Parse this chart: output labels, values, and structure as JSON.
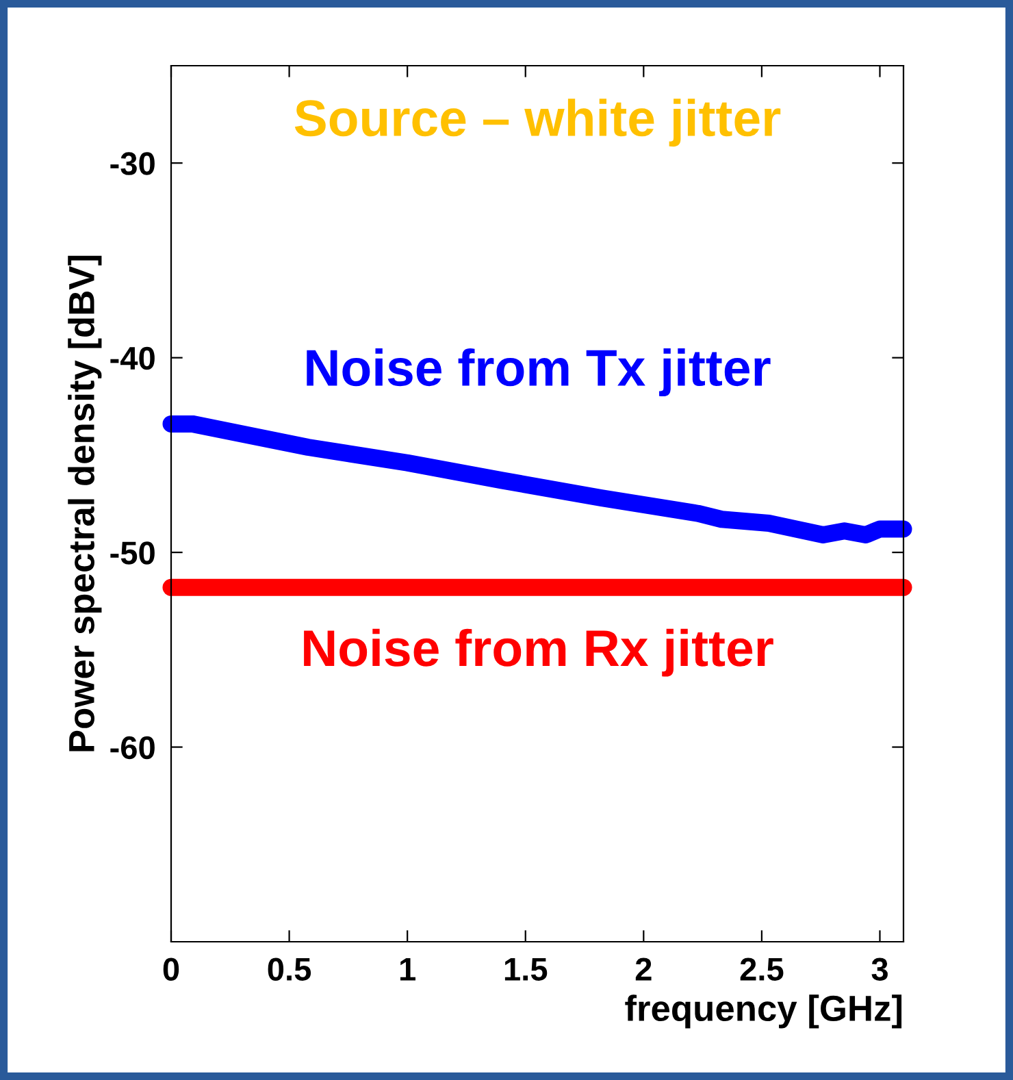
{
  "chart_data": {
    "type": "line",
    "xlabel": "frequency [GHz]",
    "ylabel": "Power spectral density [dBV]",
    "annotations": [
      "Source – white jitter"
    ],
    "series": [
      {
        "name": "Noise from Tx jitter",
        "color": "#0000ff",
        "x": [
          0,
          0.09,
          0.58,
          1.0,
          1.4,
          1.82,
          2.23,
          2.33,
          2.53,
          2.76,
          2.85,
          2.94,
          3.0,
          3.1
        ],
        "values": [
          -43.4,
          -43.4,
          -44.6,
          -45.4,
          -46.3,
          -47.2,
          -48.0,
          -48.3,
          -48.5,
          -49.1,
          -48.9,
          -49.1,
          -48.8,
          -48.8
        ]
      },
      {
        "name": "Noise from Rx jitter",
        "color": "#ff0000",
        "x": [
          0,
          3.1
        ],
        "values": [
          -51.8,
          -51.8
        ]
      }
    ],
    "xlim": [
      0,
      3.1
    ],
    "ylim": [
      -70,
      -25
    ],
    "xticks": [
      0,
      0.5,
      1,
      1.5,
      2,
      2.5,
      3
    ],
    "yticks": [
      -30,
      -40,
      -50,
      -60
    ],
    "grid": false,
    "legend": false,
    "line_style": "solid"
  }
}
